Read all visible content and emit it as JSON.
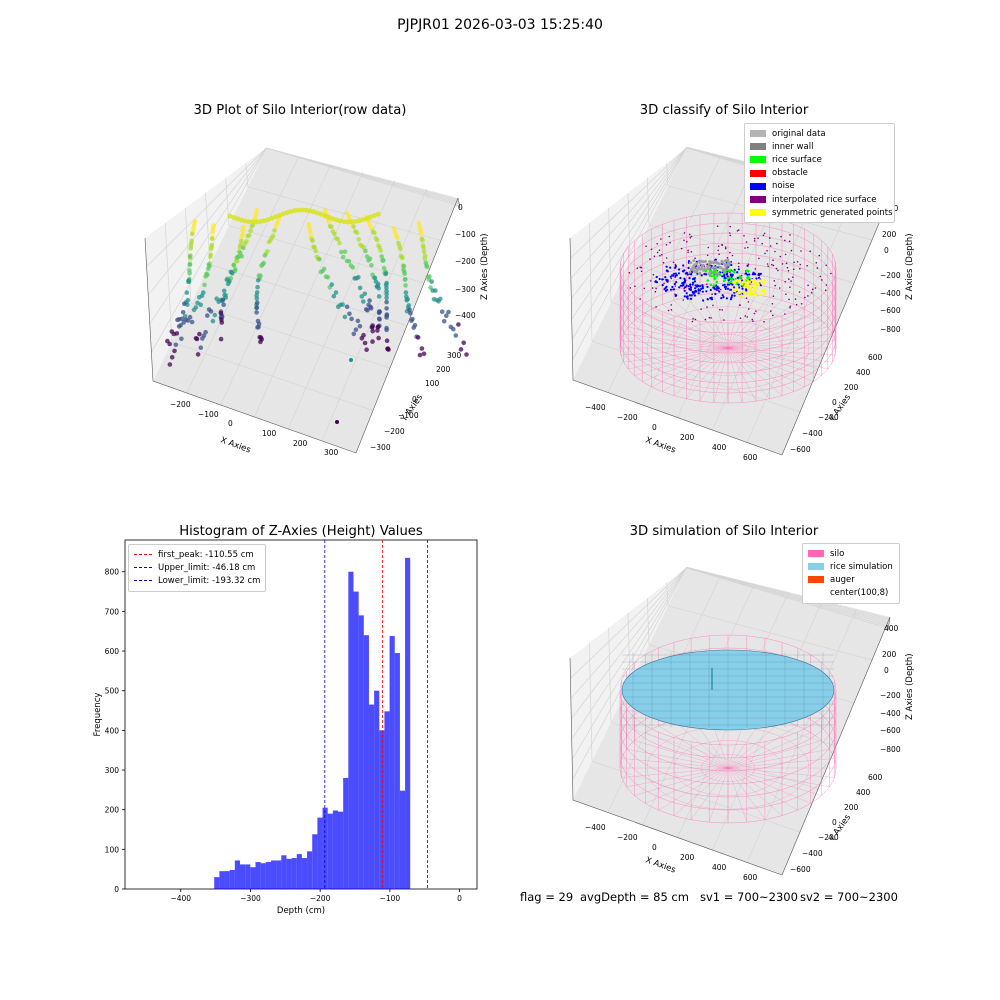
{
  "figure": {
    "suptitle": "PJPJR01 2026-03-03 15:25:40"
  },
  "panels": {
    "raw": {
      "title": "3D Plot of Silo Interior(row data)",
      "xlabel": "X Axies",
      "ylabel": "Y Axies",
      "zlabel": "Z Axies (Depth)",
      "xticks": [
        "−200",
        "−100",
        "0",
        "100",
        "200",
        "300"
      ],
      "yticks": [
        "−300",
        "−200",
        "−100",
        "0",
        "100",
        "200",
        "300"
      ],
      "zticks": [
        "0",
        "−100",
        "−200",
        "−300",
        "−400"
      ]
    },
    "classify": {
      "title": "3D classify of Silo Interior",
      "xlabel": "X Axies",
      "ylabel": "Y Axies",
      "zlabel": "Z Axies (Depth)",
      "xticks": [
        "−400",
        "−200",
        "0",
        "200",
        "400",
        "600"
      ],
      "yticks": [
        "−600",
        "−400",
        "−200",
        "0",
        "200",
        "400",
        "600"
      ],
      "zticks": [
        "400",
        "200",
        "0",
        "−200",
        "−400",
        "−600",
        "−800"
      ],
      "legend": [
        {
          "label": "original data",
          "color": "#b3b3b3"
        },
        {
          "label": "inner wall",
          "color": "#808080"
        },
        {
          "label": "rice surface",
          "color": "#00ff00"
        },
        {
          "label": "obstacle",
          "color": "#ff0000"
        },
        {
          "label": "noise",
          "color": "#0000ff"
        },
        {
          "label": "interpolated rice surface",
          "color": "#800080"
        },
        {
          "label": "symmetric generated points",
          "color": "#ffff00"
        }
      ]
    },
    "simulation": {
      "title": "3D simulation of Silo Interior",
      "xlabel": "X Axies",
      "ylabel": "Y Axies",
      "zlabel": "Z Axies (Depth)",
      "xticks": [
        "−400",
        "−200",
        "0",
        "200",
        "400",
        "600"
      ],
      "yticks": [
        "−600",
        "−400",
        "−200",
        "0",
        "200",
        "400",
        "600"
      ],
      "zticks": [
        "400",
        "200",
        "0",
        "−200",
        "−400",
        "−600",
        "−800"
      ],
      "legend": [
        {
          "label": "silo",
          "color": "#ff69b4"
        },
        {
          "label": "rice simulation",
          "color": "#87ceeb"
        },
        {
          "label": "auger",
          "color": "#ff4500"
        },
        {
          "label": "center(100,8)",
          "color": ""
        }
      ]
    },
    "footer": {
      "flag": "flag = 29",
      "avg": "avgDepth = 85 cm",
      "sv1": "sv1 = 700~2300",
      "sv2": "sv2 = 700~2300"
    }
  },
  "chart_data": [
    {
      "type": "scatter",
      "title": "3D Plot of Silo Interior(row data)",
      "xlabel": "X Axies",
      "ylabel": "Y Axies",
      "zlabel": "Z Axies (Depth)",
      "xlim": [
        -250,
        320
      ],
      "ylim": [
        -320,
        320
      ],
      "zlim": [
        -450,
        0
      ]
    },
    {
      "type": "scatter",
      "title": "3D classify of Silo Interior",
      "xlabel": "X Axies",
      "ylabel": "Y Axies",
      "zlabel": "Z Axies (Depth)",
      "xlim": [
        -500,
        700
      ],
      "ylim": [
        -650,
        650
      ],
      "zlim": [
        -900,
        400
      ],
      "series": [
        {
          "name": "original data"
        },
        {
          "name": "inner wall"
        },
        {
          "name": "rice surface"
        },
        {
          "name": "obstacle"
        },
        {
          "name": "noise"
        },
        {
          "name": "interpolated rice surface"
        },
        {
          "name": "symmetric generated points"
        }
      ]
    },
    {
      "type": "bar",
      "title": "Histogram of Z-Axies (Height) Values",
      "xlabel": "Depth (cm)",
      "ylabel": "Frequency",
      "xlim": [
        -480,
        25
      ],
      "ylim": [
        0,
        880
      ],
      "xticks": [
        -400,
        -300,
        -200,
        -100,
        0
      ],
      "yticks": [
        0,
        100,
        200,
        300,
        400,
        500,
        600,
        700,
        800
      ],
      "bin_start": -352,
      "bin_width": 7.4,
      "values": [
        30,
        45,
        45,
        48,
        72,
        62,
        62,
        55,
        68,
        65,
        68,
        72,
        72,
        85,
        76,
        78,
        88,
        78,
        95,
        138,
        180,
        205,
        190,
        198,
        195,
        280,
        800,
        750,
        690,
        640,
        465,
        500,
        400,
        448,
        638,
        595,
        248,
        835
      ],
      "color": "#0000ff",
      "lines": [
        {
          "name": "first_peak: -110.55 cm",
          "x": -110.55,
          "color": "#ff0000"
        },
        {
          "name": "Upper_limit: -46.18 cm",
          "x": -46.18,
          "color": "#0000cd"
        },
        {
          "name": "Lower_limit: -193.32 cm",
          "x": -193.32,
          "color": "#0000cd"
        }
      ]
    },
    {
      "type": "area",
      "title": "3D simulation of Silo Interior",
      "xlabel": "X Axies",
      "ylabel": "Y Axies",
      "zlabel": "Z Axies (Depth)",
      "series": [
        {
          "name": "silo"
        },
        {
          "name": "rice simulation"
        },
        {
          "name": "auger"
        },
        {
          "name": "center(100,8)"
        }
      ]
    }
  ]
}
